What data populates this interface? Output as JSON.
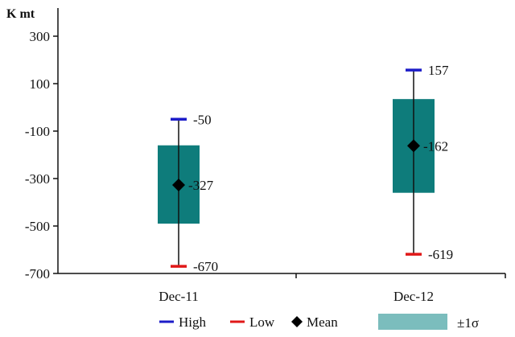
{
  "chart_data": {
    "type": "box",
    "unit_label": "K mt",
    "categories": [
      "Dec-11",
      "Dec-12"
    ],
    "series": [
      {
        "name": "High",
        "values": [
          -50,
          157
        ]
      },
      {
        "name": "Low",
        "values": [
          -670,
          -619
        ]
      },
      {
        "name": "Mean",
        "values": [
          -327,
          -162
        ]
      }
    ],
    "band": {
      "name": "±1σ",
      "lower": [
        -490,
        -360
      ],
      "upper": [
        -160,
        35
      ]
    },
    "value_labels": {
      "high": [
        "-50",
        "157"
      ],
      "mean": [
        "-327",
        "-162"
      ],
      "low": [
        "-670",
        "-619"
      ]
    },
    "ylim": [
      -700,
      350
    ],
    "yticks": [
      300,
      100,
      -100,
      -300,
      -500,
      -700
    ],
    "ytick_labels": [
      "300",
      "100",
      "-100",
      "-300",
      "-500",
      "-700"
    ],
    "grid": false,
    "legend": "bottom",
    "colors": {
      "high": "#1c1cc8",
      "low": "#e01818",
      "mean": "#000000",
      "band": "#0e7c7b",
      "band_legend": "#7bbdbd",
      "whisker": "#111111",
      "axis": "#111111"
    }
  }
}
